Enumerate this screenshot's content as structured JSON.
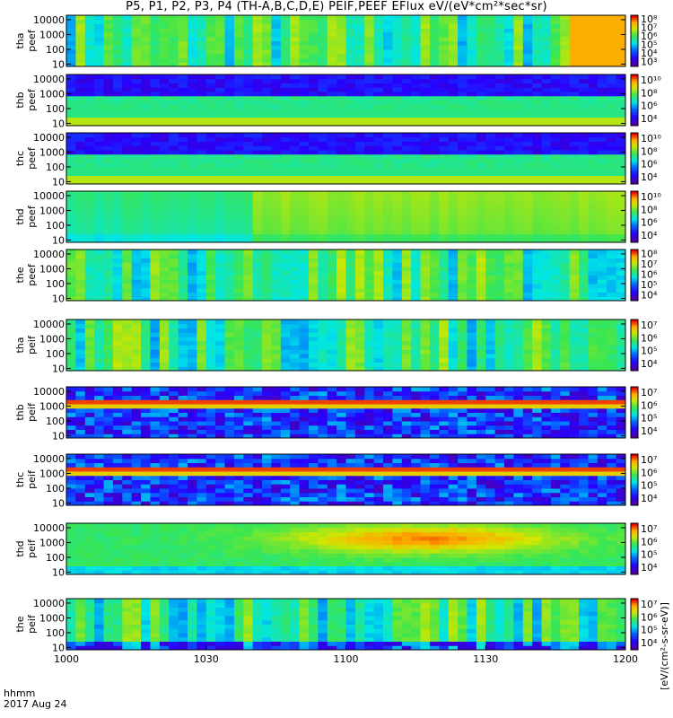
{
  "chart_data": {
    "type": "heatmap",
    "title": "P5, P1, P2, P3, P4 (TH-A,B,C,D,E) PEIF,PEEF EFlux eV/(eV*cm²*sec*sr)",
    "x_ticks": [
      "1000",
      "1030",
      "1100",
      "1130",
      "1200"
    ],
    "x_range": [
      "10:00",
      "12:00"
    ],
    "time_label": "hhmm",
    "date_label": "2017 Aug 24",
    "y_scale": "log",
    "y_ticks": [
      "10",
      "100",
      "1000",
      "10000"
    ],
    "colorbar_label": "[eV/(cm²-s-sr-eV)]",
    "panels": [
      {
        "name": "tha peef",
        "label1": "tha",
        "label2": "peef",
        "cbar_ticks": [
          "10³",
          "10⁴",
          "10⁵",
          "10⁶",
          "10⁷",
          "10⁸"
        ],
        "pattern": "blocks",
        "warm_end": 1
      },
      {
        "name": "thb peef",
        "label1": "thb",
        "label2": "peef",
        "cbar_ticks": [
          "10⁴",
          "10⁶",
          "10⁸",
          "10¹⁰"
        ],
        "pattern": "bands_noisy"
      },
      {
        "name": "thc peef",
        "label1": "thc",
        "label2": "peef",
        "cbar_ticks": [
          "10⁴",
          "10⁶",
          "10⁸",
          "10¹⁰"
        ],
        "pattern": "bands_noisy"
      },
      {
        "name": "thd peef",
        "label1": "thd",
        "label2": "peef",
        "cbar_ticks": [
          "10⁴",
          "10⁶",
          "10⁸",
          "10¹⁰"
        ],
        "pattern": "smooth"
      },
      {
        "name": "the peef",
        "label1": "the",
        "label2": "peef",
        "cbar_ticks": [
          "10⁴",
          "10⁵",
          "10⁶",
          "10⁷",
          "10⁸"
        ],
        "pattern": "blocks"
      },
      {
        "name": "tha peif",
        "label1": "tha",
        "label2": "peif",
        "cbar_ticks": [
          "10⁴",
          "10⁵",
          "10⁶",
          "10⁷"
        ],
        "pattern": "blocks"
      },
      {
        "name": "thb peif",
        "label1": "thb",
        "label2": "peif",
        "cbar_ticks": [
          "10⁴",
          "10⁵",
          "10⁶",
          "10⁷"
        ],
        "pattern": "bands_dark"
      },
      {
        "name": "thc peif",
        "label1": "thc",
        "label2": "peif",
        "cbar_ticks": [
          "10⁴",
          "10⁵",
          "10⁶",
          "10⁷"
        ],
        "pattern": "bands_dark"
      },
      {
        "name": "thd peif",
        "label1": "thd",
        "label2": "peif",
        "cbar_ticks": [
          "10⁴",
          "10⁵",
          "10⁶",
          "10⁷"
        ],
        "pattern": "hot"
      },
      {
        "name": "the peif",
        "label1": "the",
        "label2": "peif",
        "cbar_ticks": [
          "10⁴",
          "10⁵",
          "10⁶",
          "10⁷"
        ],
        "pattern": "blocks_low"
      }
    ]
  }
}
